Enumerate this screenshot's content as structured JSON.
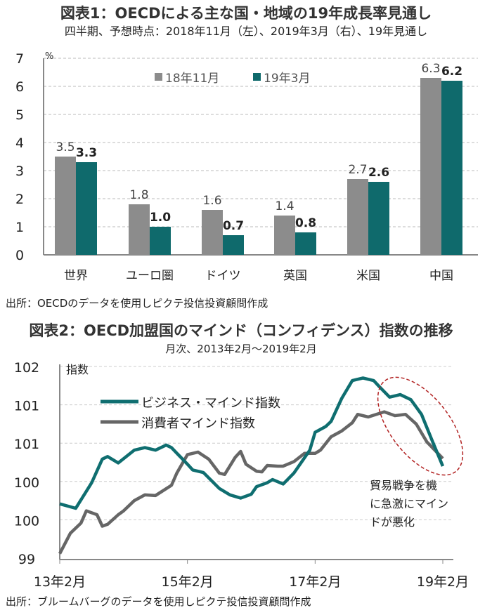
{
  "chart_data": [
    {
      "type": "bar",
      "title": "図表1：OECDによる主な国・地域の19年成長率見通し",
      "subtitle": "四半期、予想時点：2018年11月（左）、2019年3月（右）、19年見通し",
      "ylabel": "%",
      "ylim": [
        0,
        7
      ],
      "yticks": [
        0,
        1,
        2,
        3,
        4,
        5,
        6,
        7
      ],
      "grid": true,
      "legend": "top-center",
      "categories": [
        "世界",
        "ユーロ圏",
        "ドイツ",
        "英国",
        "米国",
        "中国"
      ],
      "series": [
        {
          "name": "18年11月",
          "color": "#8c8c8c",
          "values": [
            3.5,
            1.8,
            1.6,
            1.4,
            2.7,
            6.3
          ],
          "labels": [
            "3.5",
            "1.8",
            "1.6",
            "1.4",
            "2.7",
            "6.3"
          ]
        },
        {
          "name": "19年3月",
          "color": "#0f6a6c",
          "values": [
            3.3,
            1.0,
            0.7,
            0.8,
            2.6,
            6.2
          ],
          "labels": [
            "3.3",
            "1.0",
            "0.7",
            "0.8",
            "2.6",
            "6.2"
          ]
        }
      ],
      "source": "出所：OECDのデータを使用しピクテ投信投資顧問作成"
    },
    {
      "type": "line",
      "title": "図表2：OECD加盟国のマインド（コンフィデンス）指数の推移",
      "subtitle": "月次、2013年2月～2019年2月",
      "ylabel": "指数",
      "ylim": [
        99,
        102
      ],
      "yticks": [
        99,
        99.6,
        100.2,
        100.8,
        101.4,
        102
      ],
      "ytick_labels": [
        "99",
        "100",
        "100",
        "101",
        "101",
        "102"
      ],
      "xticks": [
        "2013-02",
        "2015-02",
        "2017-02",
        "2019-02"
      ],
      "xtick_labels": [
        "13年2月",
        "15年2月",
        "17年2月",
        "19年2月"
      ],
      "grid": true,
      "legend": "top-left",
      "series": [
        {
          "name": "ビジネス・マインド指数",
          "color": "#0f6e70",
          "points": [
            [
              "2013-02",
              99.85
            ],
            [
              "2013-05",
              99.78
            ],
            [
              "2013-08",
              100.18
            ],
            [
              "2013-10",
              100.55
            ],
            [
              "2013-11",
              100.59
            ],
            [
              "2014-01",
              100.49
            ],
            [
              "2014-04",
              100.69
            ],
            [
              "2014-06",
              100.73
            ],
            [
              "2014-08",
              100.69
            ],
            [
              "2014-10",
              100.77
            ],
            [
              "2014-11",
              100.73
            ],
            [
              "2015-02",
              100.47
            ],
            [
              "2015-03",
              100.38
            ],
            [
              "2015-05",
              100.34
            ],
            [
              "2015-08",
              100.09
            ],
            [
              "2015-10",
              99.99
            ],
            [
              "2015-12",
              99.94
            ],
            [
              "2016-02",
              100.0
            ],
            [
              "2016-03",
              100.12
            ],
            [
              "2016-05",
              100.18
            ],
            [
              "2016-06",
              100.23
            ],
            [
              "2016-08",
              100.16
            ],
            [
              "2016-10",
              100.33
            ],
            [
              "2017-01",
              100.69
            ],
            [
              "2017-02",
              100.97
            ],
            [
              "2017-04",
              101.06
            ],
            [
              "2017-05",
              101.14
            ],
            [
              "2017-07",
              101.5
            ],
            [
              "2017-09",
              101.78
            ],
            [
              "2017-11",
              101.82
            ],
            [
              "2018-01",
              101.78
            ],
            [
              "2018-02",
              101.69
            ],
            [
              "2018-04",
              101.52
            ],
            [
              "2018-06",
              101.56
            ],
            [
              "2018-08",
              101.48
            ],
            [
              "2018-10",
              101.25
            ],
            [
              "2018-12",
              100.84
            ],
            [
              "2019-02",
              100.44
            ]
          ]
        },
        {
          "name": "消費者マインド指数",
          "color": "#666666",
          "points": [
            [
              "2013-02",
              99.07
            ],
            [
              "2013-04",
              99.39
            ],
            [
              "2013-06",
              99.55
            ],
            [
              "2013-07",
              99.74
            ],
            [
              "2013-09",
              99.68
            ],
            [
              "2013-10",
              99.5
            ],
            [
              "2013-11",
              99.53
            ],
            [
              "2014-01",
              99.68
            ],
            [
              "2014-02",
              99.74
            ],
            [
              "2014-04",
              99.9
            ],
            [
              "2014-06",
              99.99
            ],
            [
              "2014-08",
              99.98
            ],
            [
              "2014-11",
              100.14
            ],
            [
              "2014-12",
              100.33
            ],
            [
              "2015-02",
              100.62
            ],
            [
              "2015-04",
              100.66
            ],
            [
              "2015-06",
              100.55
            ],
            [
              "2015-08",
              100.33
            ],
            [
              "2015-09",
              100.31
            ],
            [
              "2015-11",
              100.58
            ],
            [
              "2015-12",
              100.67
            ],
            [
              "2016-01",
              100.47
            ],
            [
              "2016-03",
              100.36
            ],
            [
              "2016-04",
              100.35
            ],
            [
              "2016-05",
              100.45
            ],
            [
              "2016-07",
              100.44
            ],
            [
              "2016-08",
              100.44
            ],
            [
              "2016-10",
              100.51
            ],
            [
              "2016-12",
              100.64
            ],
            [
              "2017-02",
              100.64
            ],
            [
              "2017-03",
              100.69
            ],
            [
              "2017-05",
              100.9
            ],
            [
              "2017-07",
              100.99
            ],
            [
              "2017-09",
              101.12
            ],
            [
              "2017-10",
              101.25
            ],
            [
              "2017-12",
              101.21
            ],
            [
              "2018-03",
              101.29
            ],
            [
              "2018-05",
              101.23
            ],
            [
              "2018-07",
              101.25
            ],
            [
              "2018-09",
              101.1
            ],
            [
              "2018-11",
              100.82
            ],
            [
              "2019-02",
              100.56
            ]
          ]
        }
      ],
      "annotation": [
        "貿易戦争を機",
        "に急激にマイン",
        "ドが悪化"
      ],
      "annotation_color": "#b22222",
      "source": "出所：ブルームバーグのデータを使用しピクテ投信投資顧問作成"
    }
  ]
}
